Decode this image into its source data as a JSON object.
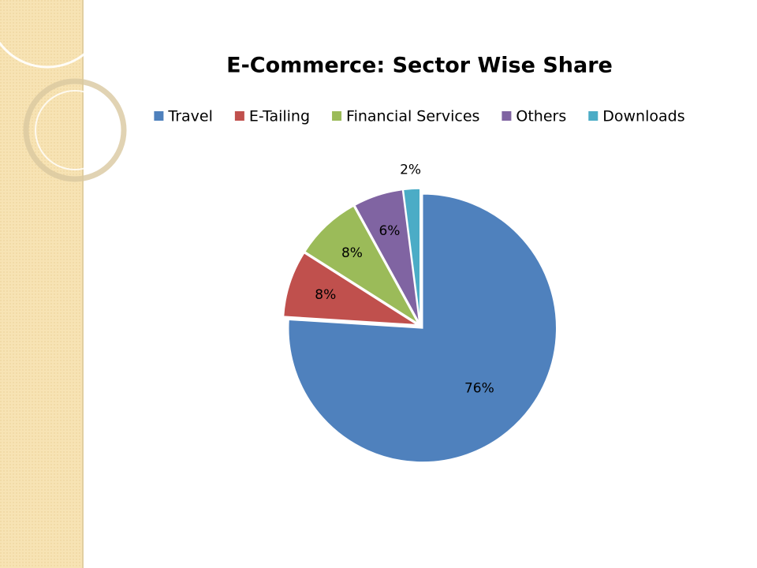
{
  "chart_data": {
    "type": "pie",
    "title": "E-Commerce: Sector Wise Share",
    "categories": [
      "Travel",
      "E-Tailing",
      "Financial Services",
      "Others",
      "Downloads"
    ],
    "values": [
      76,
      8,
      8,
      6,
      2
    ],
    "value_labels": [
      "76%",
      "8%",
      "8%",
      "6%",
      "2%"
    ],
    "colors": [
      "#4f81bd",
      "#c0504d",
      "#9bbb59",
      "#8064a2",
      "#4bacc6"
    ],
    "legend": "top"
  }
}
